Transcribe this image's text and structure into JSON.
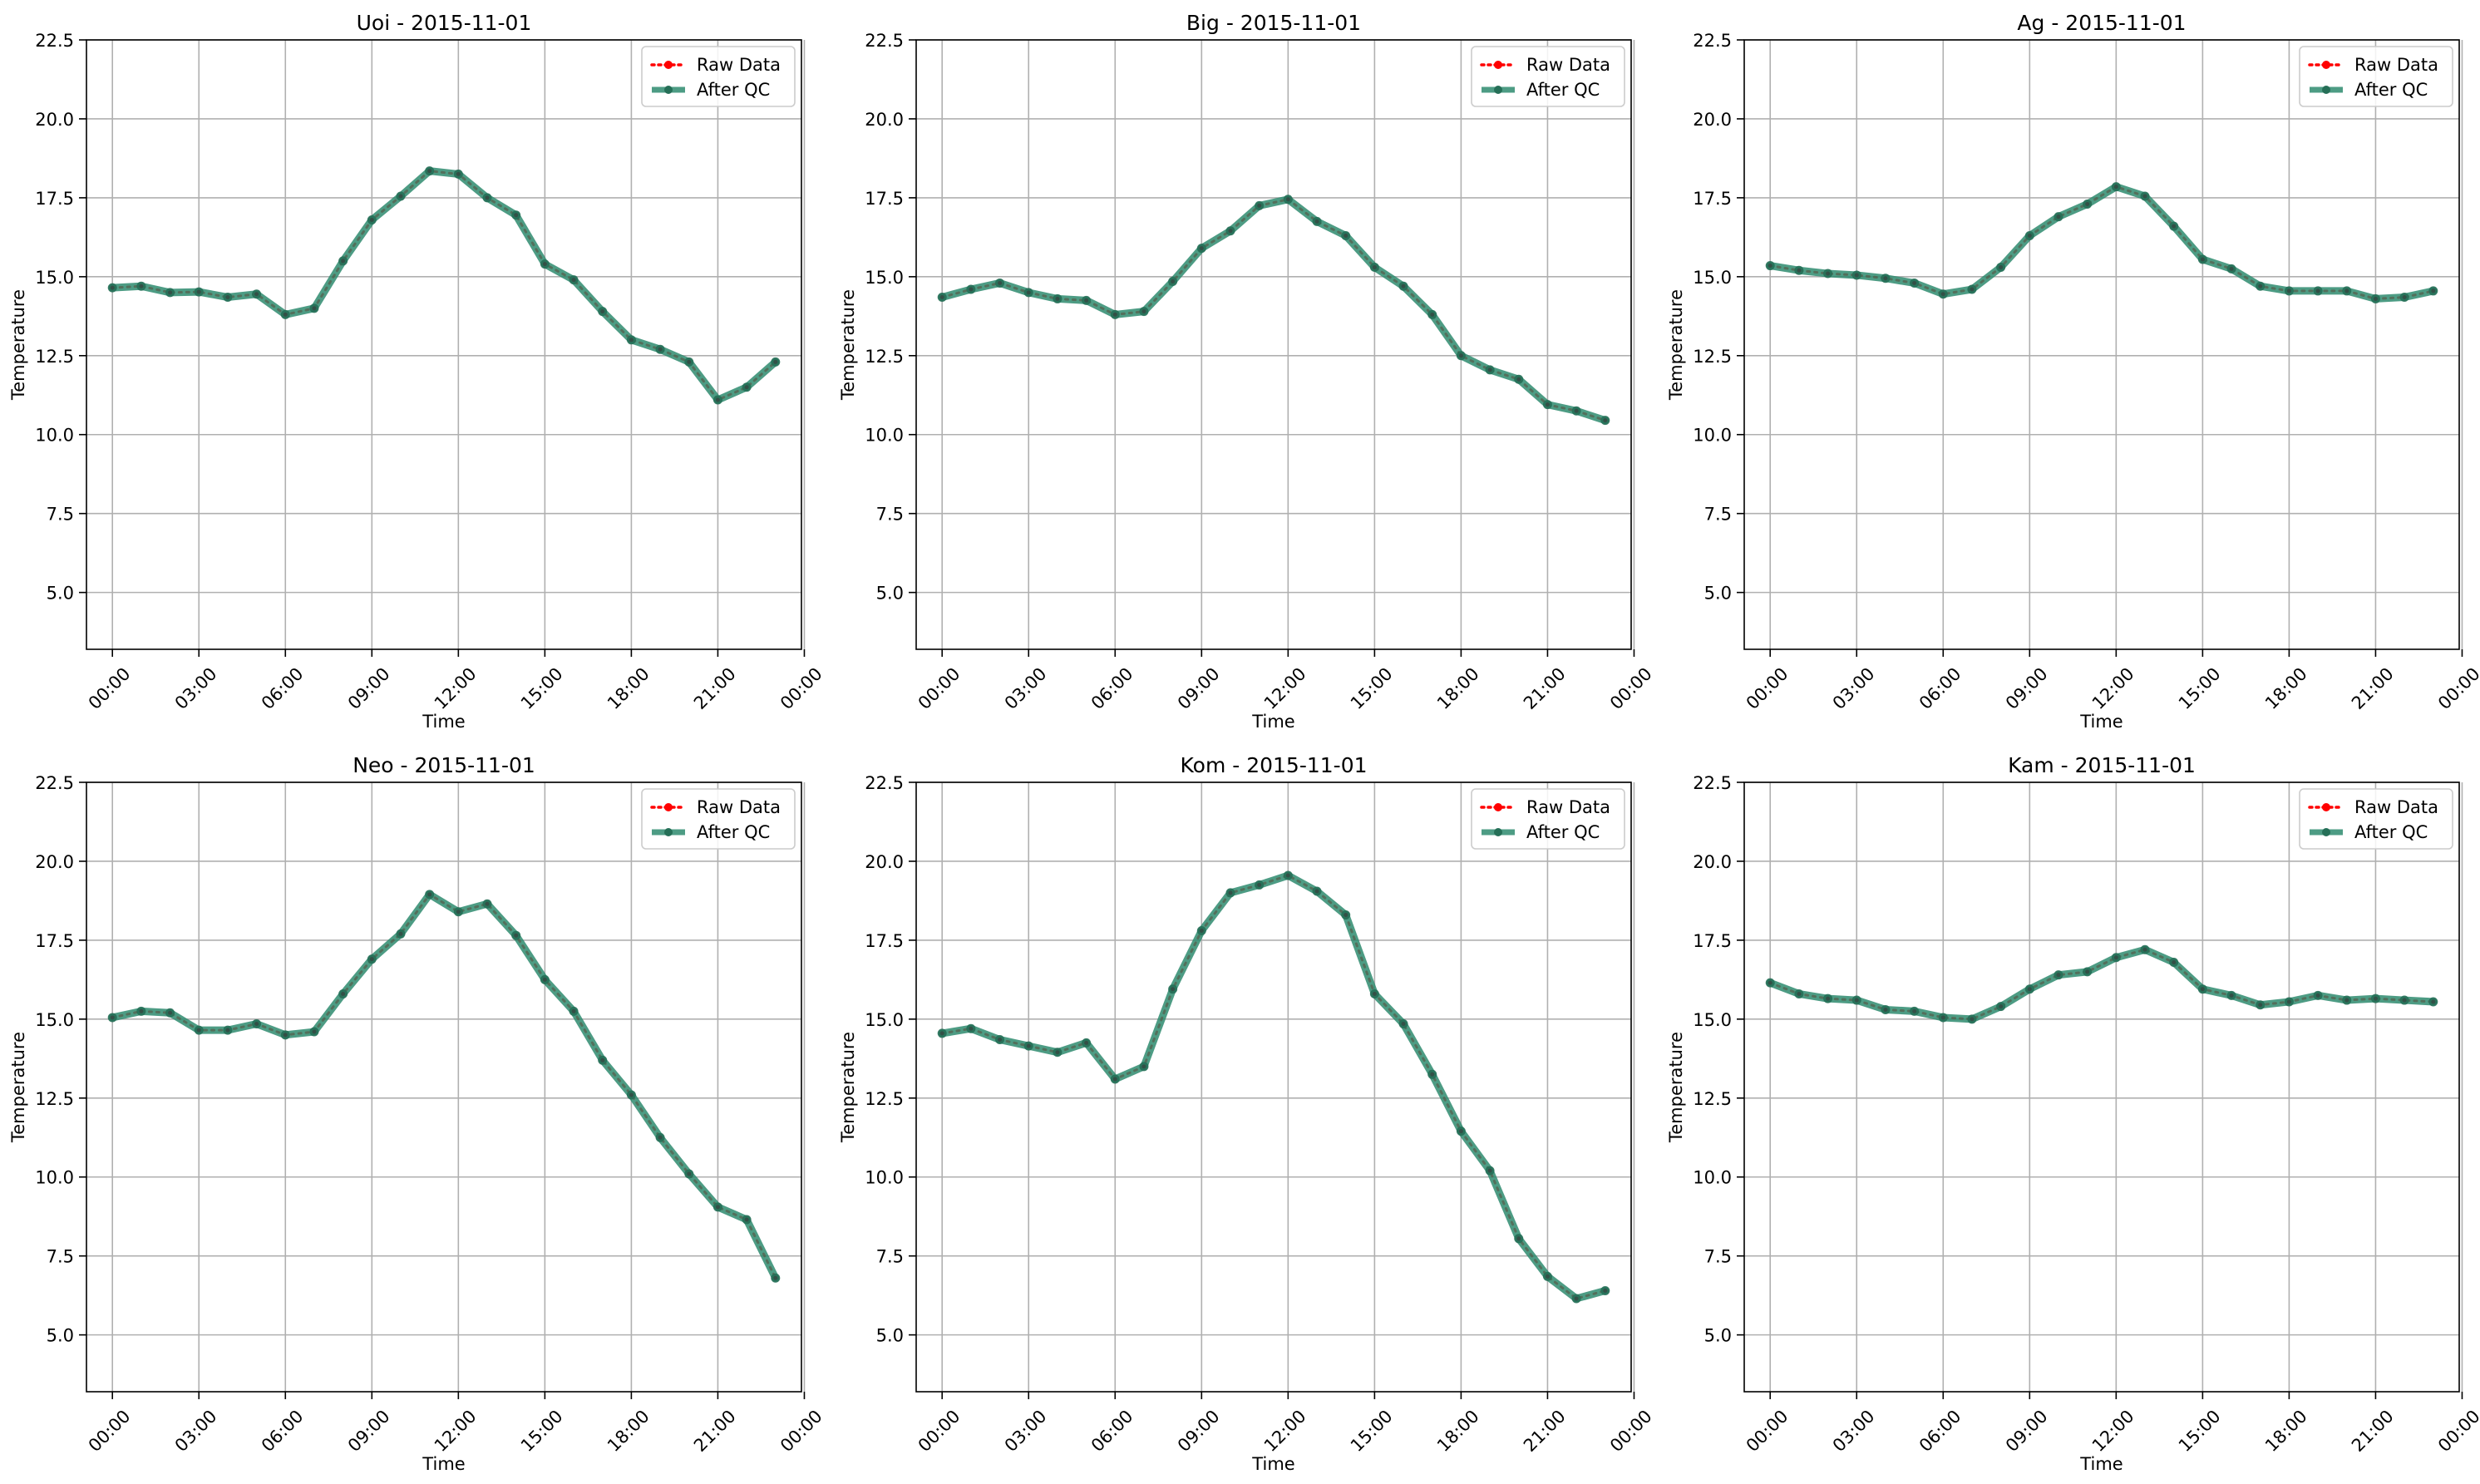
{
  "chart_data": [
    {
      "type": "line",
      "title": "Uoi - 2015-11-01",
      "xlabel": "Time",
      "ylabel": "Temperature",
      "ylim": [
        3.2,
        22.5
      ],
      "xlim": [
        -0.9,
        23.9
      ],
      "yticks": [
        5.0,
        7.5,
        10.0,
        12.5,
        15.0,
        17.5,
        20.0,
        22.5
      ],
      "ytick_labels": [
        "5.0",
        "7.5",
        "10.0",
        "12.5",
        "15.0",
        "17.5",
        "20.0",
        "22.5"
      ],
      "xticks": [
        0,
        3,
        6,
        9,
        12,
        15,
        18,
        21,
        24
      ],
      "xtick_labels": [
        "00:00",
        "03:00",
        "06:00",
        "09:00",
        "12:00",
        "15:00",
        "18:00",
        "21:00",
        "00:00"
      ],
      "grid": true,
      "legend": "top-right",
      "x": [
        0,
        1,
        2,
        3,
        4,
        5,
        6,
        7,
        8,
        9,
        10,
        11,
        12,
        13,
        14,
        15,
        16,
        17,
        18,
        19,
        20,
        21,
        22,
        23
      ],
      "series": [
        {
          "name": "Raw Data",
          "color": "#ff0000",
          "values": [
            14.65,
            14.7,
            14.5,
            14.52,
            14.35,
            14.45,
            13.8,
            14.0,
            15.5,
            16.8,
            17.55,
            18.35,
            18.25,
            17.5,
            16.95,
            15.4,
            14.9,
            13.9,
            13.0,
            12.7,
            12.3,
            11.1,
            11.5,
            12.3
          ]
        },
        {
          "name": "After QC",
          "color": "#2e8b6e",
          "values": [
            14.65,
            14.7,
            14.5,
            14.52,
            14.35,
            14.45,
            13.8,
            14.0,
            15.5,
            16.8,
            17.55,
            18.35,
            18.25,
            17.5,
            16.95,
            15.4,
            14.9,
            13.9,
            13.0,
            12.7,
            12.3,
            11.1,
            11.5,
            12.3
          ]
        }
      ]
    },
    {
      "type": "line",
      "title": "Big - 2015-11-01",
      "xlabel": "Time",
      "ylabel": "Temperature",
      "ylim": [
        3.2,
        22.5
      ],
      "xlim": [
        -0.9,
        23.9
      ],
      "yticks": [
        5.0,
        7.5,
        10.0,
        12.5,
        15.0,
        17.5,
        20.0,
        22.5
      ],
      "ytick_labels": [
        "5.0",
        "7.5",
        "10.0",
        "12.5",
        "15.0",
        "17.5",
        "20.0",
        "22.5"
      ],
      "xticks": [
        0,
        3,
        6,
        9,
        12,
        15,
        18,
        21,
        24
      ],
      "xtick_labels": [
        "00:00",
        "03:00",
        "06:00",
        "09:00",
        "12:00",
        "15:00",
        "18:00",
        "21:00",
        "00:00"
      ],
      "grid": true,
      "legend": "top-right",
      "x": [
        0,
        1,
        2,
        3,
        4,
        5,
        6,
        7,
        8,
        9,
        10,
        11,
        12,
        13,
        14,
        15,
        16,
        17,
        18,
        19,
        20,
        21,
        22,
        23
      ],
      "series": [
        {
          "name": "Raw Data",
          "color": "#ff0000",
          "values": [
            14.35,
            14.6,
            14.8,
            14.5,
            14.3,
            14.25,
            13.8,
            13.9,
            14.85,
            15.9,
            16.45,
            17.25,
            17.45,
            16.75,
            16.3,
            15.3,
            14.7,
            13.8,
            12.5,
            12.05,
            11.75,
            10.95,
            10.75,
            10.45
          ]
        },
        {
          "name": "After QC",
          "color": "#2e8b6e",
          "values": [
            14.35,
            14.6,
            14.8,
            14.5,
            14.3,
            14.25,
            13.8,
            13.9,
            14.85,
            15.9,
            16.45,
            17.25,
            17.45,
            16.75,
            16.3,
            15.3,
            14.7,
            13.8,
            12.5,
            12.05,
            11.75,
            10.95,
            10.75,
            10.45
          ]
        }
      ]
    },
    {
      "type": "line",
      "title": "Ag - 2015-11-01",
      "xlabel": "Time",
      "ylabel": "Temperature",
      "ylim": [
        3.2,
        22.5
      ],
      "xlim": [
        -0.9,
        23.9
      ],
      "yticks": [
        5.0,
        7.5,
        10.0,
        12.5,
        15.0,
        17.5,
        20.0,
        22.5
      ],
      "ytick_labels": [
        "5.0",
        "7.5",
        "10.0",
        "12.5",
        "15.0",
        "17.5",
        "20.0",
        "22.5"
      ],
      "xticks": [
        0,
        3,
        6,
        9,
        12,
        15,
        18,
        21,
        24
      ],
      "xtick_labels": [
        "00:00",
        "03:00",
        "06:00",
        "09:00",
        "12:00",
        "15:00",
        "18:00",
        "21:00",
        "00:00"
      ],
      "grid": true,
      "legend": "top-right",
      "x": [
        0,
        1,
        2,
        3,
        4,
        5,
        6,
        7,
        8,
        9,
        10,
        11,
        12,
        13,
        14,
        15,
        16,
        17,
        18,
        19,
        20,
        21,
        22,
        23
      ],
      "series": [
        {
          "name": "Raw Data",
          "color": "#ff0000",
          "values": [
            15.35,
            15.2,
            15.1,
            15.05,
            14.95,
            14.8,
            14.45,
            14.6,
            15.3,
            16.3,
            16.9,
            17.3,
            17.85,
            17.55,
            16.6,
            15.55,
            15.25,
            14.7,
            14.55,
            14.55,
            14.55,
            14.3,
            14.35,
            14.55
          ]
        },
        {
          "name": "After QC",
          "color": "#2e8b6e",
          "values": [
            15.35,
            15.2,
            15.1,
            15.05,
            14.95,
            14.8,
            14.45,
            14.6,
            15.3,
            16.3,
            16.9,
            17.3,
            17.85,
            17.55,
            16.6,
            15.55,
            15.25,
            14.7,
            14.55,
            14.55,
            14.55,
            14.3,
            14.35,
            14.55
          ]
        }
      ]
    },
    {
      "type": "line",
      "title": "Neo - 2015-11-01",
      "xlabel": "Time",
      "ylabel": "Temperature",
      "ylim": [
        3.2,
        22.5
      ],
      "xlim": [
        -0.9,
        23.9
      ],
      "yticks": [
        5.0,
        7.5,
        10.0,
        12.5,
        15.0,
        17.5,
        20.0,
        22.5
      ],
      "ytick_labels": [
        "5.0",
        "7.5",
        "10.0",
        "12.5",
        "15.0",
        "17.5",
        "20.0",
        "22.5"
      ],
      "xticks": [
        0,
        3,
        6,
        9,
        12,
        15,
        18,
        21,
        24
      ],
      "xtick_labels": [
        "00:00",
        "03:00",
        "06:00",
        "09:00",
        "12:00",
        "15:00",
        "18:00",
        "21:00",
        "00:00"
      ],
      "grid": true,
      "legend": "top-right",
      "x": [
        0,
        1,
        2,
        3,
        4,
        5,
        6,
        7,
        8,
        9,
        10,
        11,
        12,
        13,
        14,
        15,
        16,
        17,
        18,
        19,
        20,
        21,
        22,
        23
      ],
      "series": [
        {
          "name": "Raw Data",
          "color": "#ff0000",
          "values": [
            15.05,
            15.25,
            15.2,
            14.65,
            14.65,
            14.85,
            14.5,
            14.6,
            15.8,
            16.9,
            17.7,
            18.95,
            18.4,
            18.65,
            17.65,
            16.25,
            15.25,
            13.7,
            12.6,
            11.25,
            10.1,
            9.05,
            8.65,
            6.8
          ]
        },
        {
          "name": "After QC",
          "color": "#2e8b6e",
          "values": [
            15.05,
            15.25,
            15.2,
            14.65,
            14.65,
            14.85,
            14.5,
            14.6,
            15.8,
            16.9,
            17.7,
            18.95,
            18.4,
            18.65,
            17.65,
            16.25,
            15.25,
            13.7,
            12.6,
            11.25,
            10.1,
            9.05,
            8.65,
            6.8
          ]
        }
      ]
    },
    {
      "type": "line",
      "title": "Kom - 2015-11-01",
      "xlabel": "Time",
      "ylabel": "Temperature",
      "ylim": [
        3.2,
        22.5
      ],
      "xlim": [
        -0.9,
        23.9
      ],
      "yticks": [
        5.0,
        7.5,
        10.0,
        12.5,
        15.0,
        17.5,
        20.0,
        22.5
      ],
      "ytick_labels": [
        "5.0",
        "7.5",
        "10.0",
        "12.5",
        "15.0",
        "17.5",
        "20.0",
        "22.5"
      ],
      "xticks": [
        0,
        3,
        6,
        9,
        12,
        15,
        18,
        21,
        24
      ],
      "xtick_labels": [
        "00:00",
        "03:00",
        "06:00",
        "09:00",
        "12:00",
        "15:00",
        "18:00",
        "21:00",
        "00:00"
      ],
      "grid": true,
      "legend": "top-right",
      "x": [
        0,
        1,
        2,
        3,
        4,
        5,
        6,
        7,
        8,
        9,
        10,
        11,
        12,
        13,
        14,
        15,
        16,
        17,
        18,
        19,
        20,
        21,
        22,
        23
      ],
      "series": [
        {
          "name": "Raw Data",
          "color": "#ff0000",
          "values": [
            14.55,
            14.7,
            14.35,
            14.15,
            13.95,
            14.25,
            13.1,
            13.5,
            15.95,
            17.8,
            19.0,
            19.25,
            19.55,
            19.05,
            18.3,
            15.8,
            14.85,
            13.25,
            11.45,
            10.2,
            8.05,
            6.85,
            6.15,
            6.4
          ]
        },
        {
          "name": "After QC",
          "color": "#2e8b6e",
          "values": [
            14.55,
            14.7,
            14.35,
            14.15,
            13.95,
            14.25,
            13.1,
            13.5,
            15.95,
            17.8,
            19.0,
            19.25,
            19.55,
            19.05,
            18.3,
            15.8,
            14.85,
            13.25,
            11.45,
            10.2,
            8.05,
            6.85,
            6.15,
            6.4
          ]
        }
      ]
    },
    {
      "type": "line",
      "title": "Kam - 2015-11-01",
      "xlabel": "Time",
      "ylabel": "Temperature",
      "ylim": [
        3.2,
        22.5
      ],
      "xlim": [
        -0.9,
        23.9
      ],
      "yticks": [
        5.0,
        7.5,
        10.0,
        12.5,
        15.0,
        17.5,
        20.0,
        22.5
      ],
      "ytick_labels": [
        "5.0",
        "7.5",
        "10.0",
        "12.5",
        "15.0",
        "17.5",
        "20.0",
        "22.5"
      ],
      "xticks": [
        0,
        3,
        6,
        9,
        12,
        15,
        18,
        21,
        24
      ],
      "xtick_labels": [
        "00:00",
        "03:00",
        "06:00",
        "09:00",
        "12:00",
        "15:00",
        "18:00",
        "21:00",
        "00:00"
      ],
      "grid": true,
      "legend": "top-right",
      "x": [
        0,
        1,
        2,
        3,
        4,
        5,
        6,
        7,
        8,
        9,
        10,
        11,
        12,
        13,
        14,
        15,
        16,
        17,
        18,
        19,
        20,
        21,
        22,
        23
      ],
      "series": [
        {
          "name": "Raw Data",
          "color": "#ff0000",
          "values": [
            16.15,
            15.8,
            15.65,
            15.6,
            15.3,
            15.25,
            15.05,
            15.0,
            15.4,
            15.95,
            16.4,
            16.5,
            16.95,
            17.2,
            16.8,
            15.95,
            15.75,
            15.45,
            15.55,
            15.75,
            15.6,
            15.65,
            15.6,
            15.55
          ]
        },
        {
          "name": "After QC",
          "color": "#2e8b6e",
          "values": [
            16.15,
            15.8,
            15.65,
            15.6,
            15.3,
            15.25,
            15.05,
            15.0,
            15.4,
            15.95,
            16.4,
            16.5,
            16.95,
            17.2,
            16.8,
            15.95,
            15.75,
            15.45,
            15.55,
            15.75,
            15.6,
            15.65,
            15.6,
            15.55
          ]
        }
      ]
    }
  ]
}
